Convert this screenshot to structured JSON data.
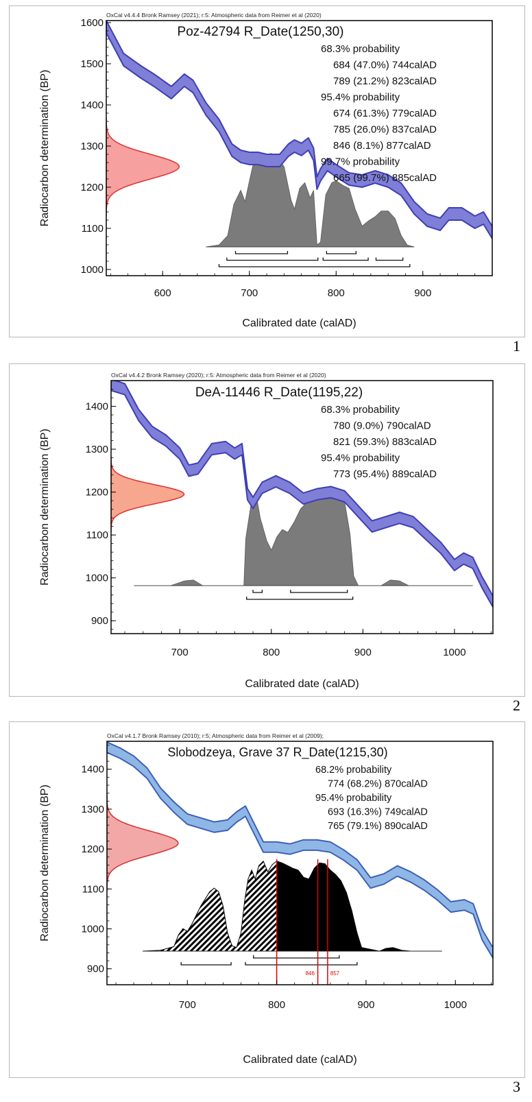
{
  "panels": [
    {
      "number": "1",
      "chart_data": {
        "type": "area",
        "header": "OxCal v4.4.4 Bronk Ramsey (2021); r:5: Atmospheric data from Reimer et al (2020)",
        "title": "Poz-42794 R_Date(1250,30)",
        "xlabel": "Calibrated date (calAD)",
        "ylabel": "Radiocarbon determination (BP)",
        "xlim": [
          535,
          980
        ],
        "ylim": [
          985,
          1605
        ],
        "xticks": [
          600,
          700,
          800,
          900
        ],
        "yticks": [
          1000,
          1100,
          1200,
          1300,
          1400,
          1500,
          1600
        ],
        "probability_text": [
          {
            "text": "68.3% probability",
            "indent": 0
          },
          {
            "text": "684 (47.0%) 744calAD",
            "indent": 1
          },
          {
            "text": "789 (21.2%) 823calAD",
            "indent": 1
          },
          {
            "text": "95.4% probability",
            "indent": 0
          },
          {
            "text": "674 (61.3%) 779calAD",
            "indent": 1
          },
          {
            "text": "785 (26.0%) 837calAD",
            "indent": 1
          },
          {
            "text": "846 (8.1%) 877calAD",
            "indent": 1
          },
          {
            "text": "99.7% probability",
            "indent": 0
          },
          {
            "text": "665 (99.7%) 885calAD",
            "indent": 1
          }
        ],
        "calibration_curve": {
          "x": [
            535,
            555,
            575,
            590,
            610,
            625,
            635,
            650,
            665,
            680,
            690,
            700,
            710,
            720,
            735,
            745,
            752,
            760,
            768,
            774,
            778,
            782,
            790,
            800,
            815,
            830,
            845,
            860,
            875,
            890,
            905,
            920,
            930,
            945,
            960,
            970,
            980
          ],
          "y": [
            1590,
            1510,
            1480,
            1460,
            1430,
            1460,
            1445,
            1390,
            1350,
            1290,
            1275,
            1270,
            1270,
            1265,
            1265,
            1290,
            1300,
            1292,
            1305,
            1280,
            1210,
            1230,
            1255,
            1240,
            1220,
            1215,
            1225,
            1215,
            1195,
            1150,
            1120,
            1110,
            1135,
            1135,
            1115,
            1125,
            1090
          ],
          "band_halfwidth": 15,
          "color": "#3f3fb5",
          "fill": "#7f7fd8"
        },
        "measurement_curve": {
          "mean": 1250,
          "sd": 30,
          "height_years": 58,
          "color": "#e03030",
          "fill": "#f6a0a0"
        },
        "posterior": {
          "x": [
            650,
            665,
            675,
            682,
            690,
            695,
            700,
            705,
            710,
            718,
            725,
            732,
            740,
            748,
            752,
            758,
            764,
            770,
            774,
            778,
            782,
            788,
            795,
            800,
            808,
            815,
            822,
            830,
            838,
            845,
            852,
            860,
            868,
            875,
            882,
            890
          ],
          "density": [
            0,
            0.02,
            0.12,
            0.45,
            0.6,
            0.48,
            0.7,
            0.9,
            0.98,
            0.97,
            0.99,
            0.95,
            0.85,
            0.5,
            0.4,
            0.62,
            0.68,
            0.52,
            0.6,
            0.02,
            0.05,
            0.55,
            0.68,
            0.7,
            0.65,
            0.62,
            0.4,
            0.22,
            0.28,
            0.32,
            0.38,
            0.38,
            0.3,
            0.12,
            0.02,
            0
          ],
          "fill": "#7b7b7b"
        },
        "ranges": [
          {
            "level": 0,
            "from": 684,
            "to": 744
          },
          {
            "level": 0,
            "from": 789,
            "to": 823
          },
          {
            "level": 1,
            "from": 674,
            "to": 779
          },
          {
            "level": 1,
            "from": 785,
            "to": 837
          },
          {
            "level": 1,
            "from": 846,
            "to": 877
          },
          {
            "level": 2,
            "from": 665,
            "to": 885
          }
        ],
        "markers": []
      }
    },
    {
      "number": "2",
      "chart_data": {
        "type": "area",
        "header": "OxCal v4.4.2 Bronk Ramsey (2020); r:5: Atmospheric data from Reimer et al (2020)",
        "title": "DeA-11446 R_Date(1195,22)",
        "xlabel": "Calibrated date (calAD)",
        "ylabel": "Radiocarbon determination (BP)",
        "xlim": [
          625,
          1042
        ],
        "ylim": [
          870,
          1460
        ],
        "xticks": [
          700,
          800,
          900,
          1000
        ],
        "yticks": [
          900,
          1000,
          1100,
          1200,
          1300,
          1400
        ],
        "probability_text": [
          {
            "text": "68.3% probability",
            "indent": 0
          },
          {
            "text": "780 (9.0%) 790calAD",
            "indent": 1
          },
          {
            "text": "821 (59.3%) 883calAD",
            "indent": 1
          },
          {
            "text": "95.4% probability",
            "indent": 0
          },
          {
            "text": "773 (95.4%) 889calAD",
            "indent": 1
          }
        ],
        "calibration_curve": {
          "x": [
            625,
            640,
            655,
            670,
            685,
            700,
            710,
            720,
            735,
            750,
            760,
            768,
            774,
            780,
            790,
            805,
            820,
            835,
            850,
            865,
            880,
            895,
            910,
            925,
            940,
            955,
            970,
            985,
            1000,
            1010,
            1020,
            1030,
            1042
          ],
          "y": [
            1450,
            1440,
            1380,
            1340,
            1320,
            1290,
            1250,
            1255,
            1300,
            1305,
            1290,
            1300,
            1195,
            1175,
            1210,
            1225,
            1210,
            1185,
            1195,
            1200,
            1190,
            1155,
            1120,
            1130,
            1140,
            1130,
            1100,
            1070,
            1030,
            1045,
            1035,
            990,
            945
          ],
          "band_halfwidth": 13,
          "color": "#3f3fb5",
          "fill": "#7f7fd8"
        },
        "measurement_curve": {
          "mean": 1195,
          "sd": 22,
          "height_years": 55,
          "color": "#e03030",
          "fill": "#f6a78d"
        },
        "posterior": {
          "x": [
            650,
            690,
            705,
            715,
            725,
            760,
            770,
            772,
            778,
            783,
            788,
            795,
            800,
            806,
            812,
            818,
            825,
            832,
            840,
            848,
            856,
            864,
            872,
            880,
            886,
            890,
            895,
            920,
            930,
            940,
            950,
            1020
          ],
          "density": [
            0,
            0,
            0.05,
            0.06,
            0,
            0,
            0,
            0.5,
            0.88,
            1.0,
            0.72,
            0.48,
            0.38,
            0.52,
            0.6,
            0.57,
            0.68,
            0.82,
            0.9,
            0.95,
            0.92,
            0.93,
            0.92,
            0.9,
            0.55,
            0.1,
            0,
            0,
            0.06,
            0.05,
            0,
            0
          ],
          "fill": "#7b7b7b"
        },
        "ranges": [
          {
            "level": 0,
            "from": 780,
            "to": 790
          },
          {
            "level": 0,
            "from": 821,
            "to": 883
          },
          {
            "level": 1,
            "from": 773,
            "to": 889
          }
        ],
        "markers": []
      }
    },
    {
      "number": "3",
      "chart_data": {
        "type": "area",
        "header": "OxCal v4.1.7 Bronk Ramsey (2010); r:5; Atmospheric data from Reimer et al (2009);",
        "title": "Slobodzeya, Grave 37 R_Date(1215,30)",
        "xlabel": "Calibrated date (calAD)",
        "ylabel": "Radiocarbon determination (BP)",
        "xlim": [
          610,
          1042
        ],
        "ylim": [
          860,
          1470
        ],
        "xticks": [
          700,
          800,
          900,
          1000
        ],
        "yticks": [
          900,
          1000,
          1100,
          1200,
          1300,
          1400
        ],
        "probability_text": [
          {
            "text": "68.2% probability",
            "indent": 0
          },
          {
            "text": "774 (68.2%) 870calAD",
            "indent": 1
          },
          {
            "text": "95.4% probability",
            "indent": 0
          },
          {
            "text": "693 (16.3%) 749calAD",
            "indent": 1
          },
          {
            "text": "765 (79.1%) 890calAD",
            "indent": 1
          }
        ],
        "calibration_curve": {
          "x": [
            610,
            625,
            640,
            655,
            670,
            685,
            700,
            715,
            730,
            745,
            755,
            765,
            775,
            785,
            800,
            815,
            830,
            845,
            860,
            875,
            890,
            905,
            920,
            935,
            950,
            965,
            980,
            995,
            1010,
            1020,
            1030,
            1042
          ],
          "y": [
            1455,
            1440,
            1420,
            1390,
            1340,
            1305,
            1275,
            1265,
            1255,
            1260,
            1280,
            1295,
            1250,
            1205,
            1205,
            1200,
            1210,
            1210,
            1205,
            1185,
            1160,
            1115,
            1125,
            1145,
            1130,
            1110,
            1085,
            1055,
            1060,
            1050,
            985,
            940
          ],
          "band_halfwidth": 13,
          "color": "#3f5fb8",
          "fill": "#8fb7e6"
        },
        "measurement_curve": {
          "mean": 1215,
          "sd": 30,
          "height_years": 55,
          "color": "#d33030",
          "fill": "#f3a8a8"
        },
        "posterior": {
          "x": [
            650,
            670,
            685,
            690,
            695,
            700,
            705,
            710,
            715,
            720,
            725,
            730,
            735,
            740,
            745,
            750,
            755,
            760,
            764,
            768,
            772,
            776,
            780,
            785,
            790,
            795,
            800,
            806,
            812,
            818,
            824,
            830,
            836,
            842,
            848,
            854,
            860,
            866,
            872,
            878,
            884,
            890,
            895,
            915,
            922,
            930,
            940,
            950,
            985
          ],
          "density": [
            0,
            0.01,
            0.05,
            0.18,
            0.25,
            0.22,
            0.3,
            0.4,
            0.5,
            0.58,
            0.66,
            0.7,
            0.66,
            0.5,
            0.2,
            0.06,
            0.04,
            0.2,
            0.55,
            0.8,
            0.9,
            0.8,
            0.95,
            1.0,
            0.88,
            0.96,
            1.0,
            0.98,
            0.95,
            0.92,
            0.9,
            0.82,
            0.8,
            0.92,
            0.98,
            0.97,
            0.9,
            0.85,
            0.78,
            0.65,
            0.45,
            0.2,
            0.04,
            0,
            0.03,
            0.04,
            0.01,
            0,
            0
          ],
          "fill": "#000000",
          "hatch_until": 800
        },
        "ranges": [
          {
            "level": 0,
            "from": 774,
            "to": 870
          },
          {
            "level": 1,
            "from": 693,
            "to": 749
          },
          {
            "level": 1,
            "from": 765,
            "to": 890
          }
        ],
        "markers": [
          {
            "x": 800,
            "label": ""
          },
          {
            "x": 846,
            "label": "846"
          },
          {
            "x": 857,
            "label": "857"
          }
        ]
      }
    }
  ]
}
